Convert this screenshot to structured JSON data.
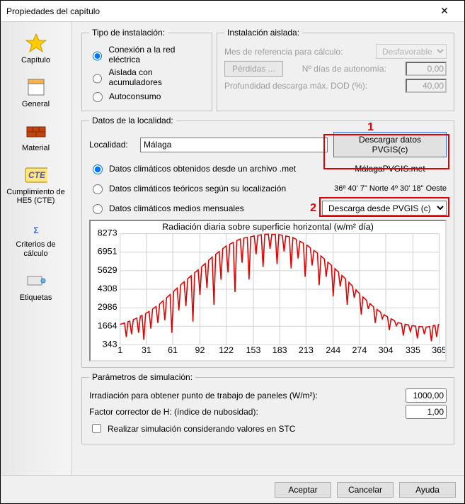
{
  "window": {
    "title": "Propiedades del capítulo"
  },
  "sidebar": {
    "items": [
      {
        "label": "Capítulo"
      },
      {
        "label": "General"
      },
      {
        "label": "Material"
      },
      {
        "label": "Cumplimiento de HE5 (CTE)"
      },
      {
        "label": "Criterios de cálculo"
      },
      {
        "label": "Etiquetas"
      }
    ]
  },
  "tipo": {
    "legend": "Tipo de instalación:",
    "opt1": "Conexión a la red eléctrica",
    "opt2": "Aislada con acumuladores",
    "opt3": "Autoconsumo"
  },
  "aislada": {
    "legend": "Instalación aislada:",
    "mes_label": "Mes de referencia para cálculo:",
    "mes_value": "Desfavorable",
    "perdidas_btn": "Pérdidas ...",
    "dias_label": "Nº días de autonomía:",
    "dias_value": "0,00",
    "prof_label": "Profundidad descarga máx. DOD (%):",
    "prof_value": "40,00"
  },
  "localidad": {
    "legend": "Datos de la localidad:",
    "label": "Localidad:",
    "value": "Málaga",
    "download_btn": "Descargar datos PVGIS(c)",
    "r1": "Datos climáticos obtenidos desde un archivo .met",
    "r1_file": "MálagaPVGIS.met",
    "r2": "Datos climáticos teóricos según su localización",
    "r2_coords": "36º 40' 7\" Norte 4º 30' 18\" Oeste",
    "r3": "Datos climáticos medios mensuales",
    "dropdown": "Descarga desde PVGIS (c)",
    "ann1": "1",
    "ann2": "2"
  },
  "chart": {
    "title": "Radiación diaria sobre superficie horizontal (w/m² día)",
    "ylim": [
      343,
      8273
    ],
    "yticks": [
      343,
      1664,
      2986,
      4308,
      5629,
      6951,
      8273
    ],
    "xlim": [
      1,
      365
    ],
    "xticks": [
      1,
      31,
      61,
      92,
      122,
      153,
      183,
      213,
      244,
      274,
      304,
      335,
      365
    ],
    "line_color": "#e40000",
    "grid_color": "#d0d0d0",
    "bg_color": "#ffffff",
    "title_fontsize": 11,
    "tick_fontsize": 9,
    "envelope": [
      [
        1,
        1800
      ],
      [
        15,
        2100
      ],
      [
        31,
        2600
      ],
      [
        45,
        3200
      ],
      [
        61,
        4100
      ],
      [
        75,
        4900
      ],
      [
        92,
        5800
      ],
      [
        106,
        6600
      ],
      [
        122,
        7400
      ],
      [
        138,
        7900
      ],
      [
        153,
        8100
      ],
      [
        168,
        8250
      ],
      [
        183,
        8200
      ],
      [
        198,
        8000
      ],
      [
        213,
        7500
      ],
      [
        228,
        6800
      ],
      [
        244,
        5900
      ],
      [
        259,
        5000
      ],
      [
        274,
        4000
      ],
      [
        289,
        3100
      ],
      [
        304,
        2400
      ],
      [
        319,
        1900
      ],
      [
        335,
        1700
      ],
      [
        350,
        1600
      ],
      [
        365,
        1800
      ]
    ],
    "dips": [
      [
        8,
        900
      ],
      [
        14,
        1100
      ],
      [
        22,
        1200
      ],
      [
        28,
        700
      ],
      [
        36,
        1500
      ],
      [
        44,
        1900
      ],
      [
        52,
        2100
      ],
      [
        60,
        1200
      ],
      [
        68,
        2800
      ],
      [
        76,
        3100
      ],
      [
        84,
        2000
      ],
      [
        92,
        3900
      ],
      [
        100,
        4400
      ],
      [
        108,
        3200
      ],
      [
        116,
        5000
      ],
      [
        124,
        5500
      ],
      [
        132,
        4100
      ],
      [
        140,
        6200
      ],
      [
        148,
        5000
      ],
      [
        156,
        6800
      ],
      [
        164,
        5900
      ],
      [
        172,
        7200
      ],
      [
        180,
        6100
      ],
      [
        188,
        7000
      ],
      [
        196,
        5800
      ],
      [
        204,
        6500
      ],
      [
        212,
        5200
      ],
      [
        220,
        6000
      ],
      [
        228,
        4600
      ],
      [
        236,
        5200
      ],
      [
        244,
        3800
      ],
      [
        252,
        4500
      ],
      [
        260,
        3200
      ],
      [
        268,
        3700
      ],
      [
        276,
        2500
      ],
      [
        284,
        2900
      ],
      [
        292,
        1900
      ],
      [
        300,
        2200
      ],
      [
        308,
        1400
      ],
      [
        316,
        1700
      ],
      [
        324,
        1000
      ],
      [
        332,
        1300
      ],
      [
        340,
        800
      ],
      [
        348,
        1100
      ],
      [
        356,
        600
      ],
      [
        362,
        900
      ]
    ]
  },
  "sim": {
    "legend": "Parámetros de simulación:",
    "irr_label": "Irradiación para obtener punto de trabajo de paneles (W/m²):",
    "irr_value": "1000,00",
    "factor_label": "Factor corrector de H: (índice de nubosidad):",
    "factor_value": "1,00",
    "stc_label": "Realizar simulación considerando valores en STC"
  },
  "footer": {
    "ok": "Aceptar",
    "cancel": "Cancelar",
    "help": "Ayuda"
  }
}
